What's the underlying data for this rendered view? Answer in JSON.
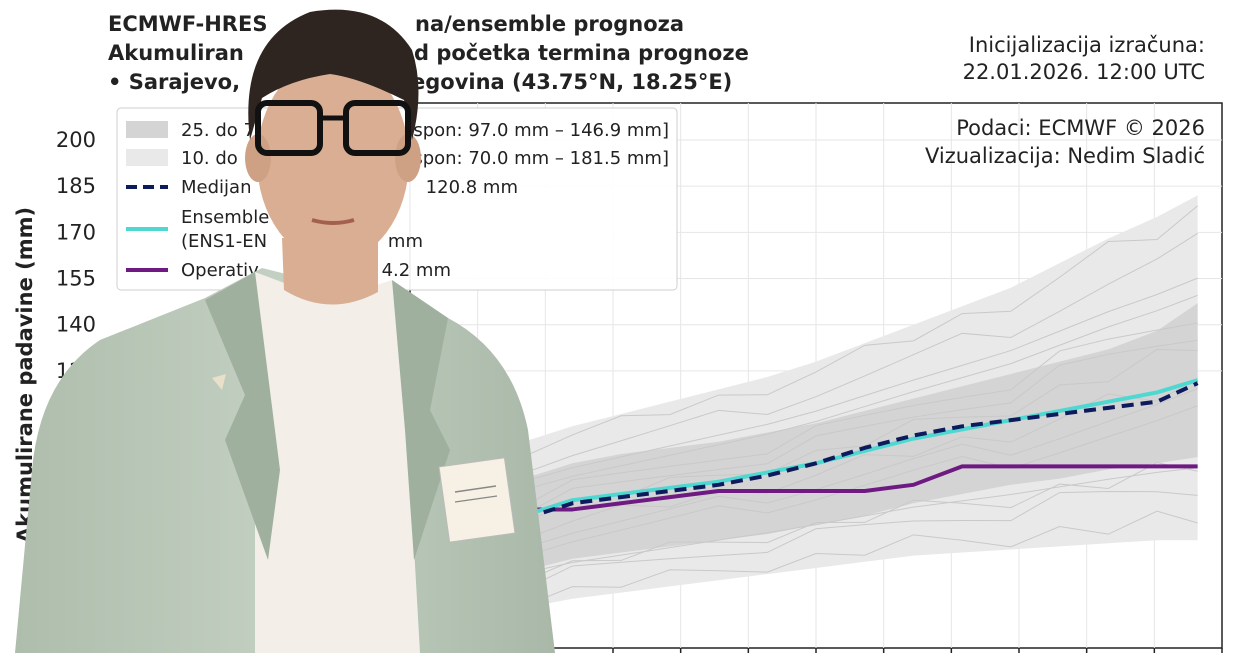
{
  "title": {
    "line1": "ECMWF-HRES",
    "line1b": "na/ensemble prognoza",
    "line2": "Akumuliran",
    "line2b": "d početka termina prognoze",
    "line3": "• Sarajevo, ",
    "line3b": "egovina (43.75°N, 18.25°E)"
  },
  "init": {
    "label": "Inicijalizacija izračuna:",
    "value": "22.01.2026. 12:00 UTC"
  },
  "credits": {
    "data": "Podaci: ECMWF © 2026",
    "viz": "Vizualizacija: Nedim Sladić"
  },
  "legend": {
    "band25": "25. do 7",
    "band25_tail": "spon: 97.0 mm – 146.9 mm]",
    "band10": "10. do",
    "band10_tail": "spon: 70.0 mm – 181.5 mm]",
    "median": "Medijan",
    "median_tail": "120.8 mm",
    "ensemble1": "Ensemble",
    "ensemble2": "(ENS1-EN",
    "ensemble_tail": "mm",
    "operative": "Operativ",
    "operative_tail": "4.2 mm"
  },
  "colors": {
    "median": "#0d1a5c",
    "ensemble": "#4fd8d2",
    "operative": "#6e1a82",
    "band_inner": "#d4d4d4",
    "band_outer": "#e9e9e9",
    "members": "#c9c9c9",
    "suit": "#b8c7b8",
    "shirt": "#f3efe8",
    "skin": "#d9ae92",
    "hair": "#2e2520",
    "badge": "#f6f1e4"
  },
  "chart_data": {
    "type": "line",
    "ylabel": "Akumulirane padavine (mm)",
    "yticks": [
      125,
      140,
      155,
      170,
      185,
      200
    ],
    "ytick_partial": "1",
    "ylim": [
      35,
      212
    ],
    "xlim": [
      0,
      1
    ],
    "grid": true,
    "x": [
      0.0,
      0.03,
      0.06,
      0.08,
      0.11,
      0.14,
      0.2,
      0.26,
      0.32,
      0.38,
      0.44,
      0.5,
      0.56,
      0.62,
      0.68,
      0.74,
      0.8,
      0.86,
      0.92,
      0.97
    ],
    "series": [
      {
        "name": "Medijan",
        "values": [
          48,
          50,
          53,
          60,
          70,
          77,
          82,
          84,
          86,
          88,
          91,
          95,
          100,
          104,
          107,
          109,
          111,
          113,
          115,
          121
        ]
      },
      {
        "name": "Ensemble",
        "values": [
          50,
          54,
          60,
          66,
          72,
          78,
          83,
          85,
          87,
          89,
          92,
          95,
          99,
          103,
          106,
          109,
          112,
          115,
          118,
          122
        ]
      },
      {
        "name": "Operativ",
        "values": [
          47,
          48,
          55,
          80,
          80,
          80,
          80,
          82,
          84,
          86,
          86,
          86,
          86,
          88,
          94,
          94,
          94,
          94,
          94,
          94
        ]
      }
    ],
    "band_25_75": {
      "low": [
        42,
        44,
        46,
        50,
        56,
        60,
        64,
        66,
        68,
        70,
        72,
        75,
        78,
        82,
        85,
        88,
        90,
        93,
        95,
        97
      ],
      "high": [
        54,
        60,
        68,
        76,
        84,
        90,
        95,
        98,
        100,
        102,
        105,
        108,
        112,
        116,
        120,
        124,
        128,
        132,
        138,
        147
      ]
    },
    "band_10_90": {
      "low": [
        38,
        39,
        40,
        42,
        45,
        48,
        51,
        53,
        55,
        57,
        59,
        61,
        63,
        65,
        66,
        67,
        68,
        69,
        70,
        70
      ],
      "high": [
        60,
        68,
        78,
        88,
        96,
        102,
        107,
        111,
        115,
        119,
        123,
        128,
        134,
        140,
        146,
        152,
        160,
        168,
        175,
        182
      ]
    }
  }
}
